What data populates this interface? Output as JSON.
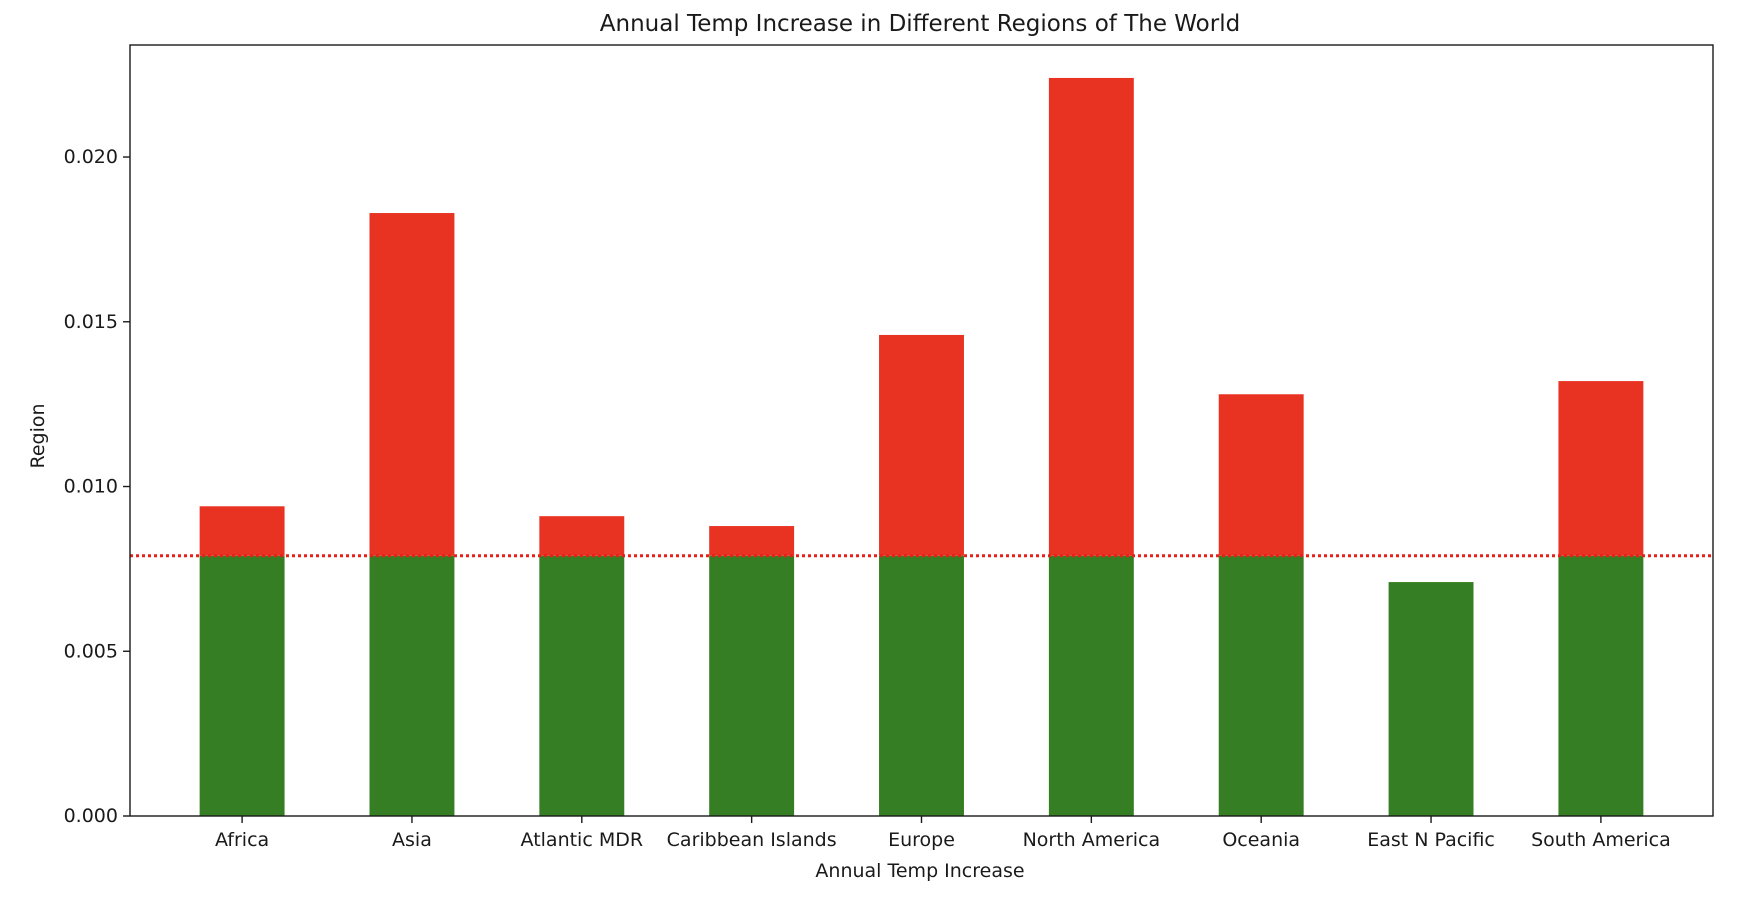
{
  "chart_data": {
    "type": "bar",
    "title": "Annual Temp Increase in Different Regions of The World",
    "xlabel": "Annual Temp Increase",
    "ylabel": "Region",
    "categories": [
      "Africa",
      "Asia",
      "Atlantic MDR",
      "Caribbean Islands",
      "Europe",
      "North America",
      "Oceania",
      "East N Pacific",
      "South America"
    ],
    "values": [
      0.0094,
      0.0183,
      0.0091,
      0.0088,
      0.0146,
      0.0224,
      0.0128,
      0.0071,
      0.0132
    ],
    "threshold": 0.0079,
    "ylim": [
      0,
      0.0234
    ],
    "yticks": [
      "0.000",
      "0.005",
      "0.010",
      "0.015",
      "0.020"
    ],
    "ytick_values": [
      0,
      0.005,
      0.01,
      0.015,
      0.02
    ],
    "grid": false,
    "colors": {
      "below_threshold": "#367e23",
      "above_threshold": "#e83323",
      "threshold_line": "#e8201a",
      "axis": "#1a1a1a"
    }
  }
}
